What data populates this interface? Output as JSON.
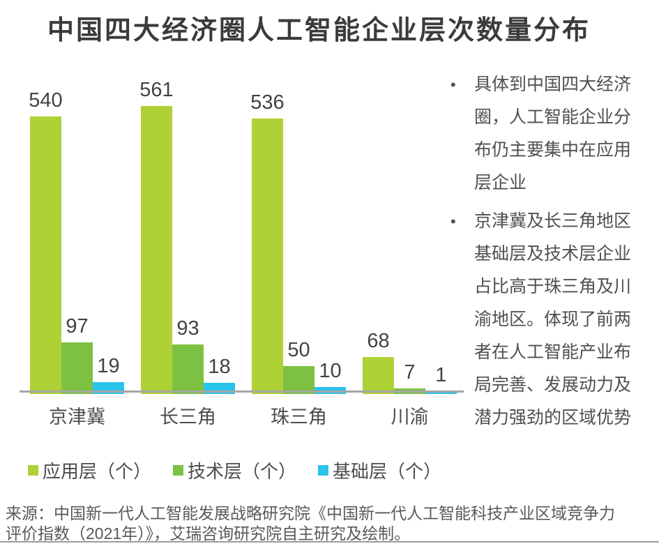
{
  "title": "中国四大经济圈人工智能企业层次数量分布",
  "chart_data": {
    "type": "bar",
    "title": "中国四大经济圈人工智能企业层次数量分布",
    "categories": [
      "京津冀",
      "长三角",
      "珠三角",
      "川渝"
    ],
    "series": [
      {
        "name": "应用层（个）",
        "color": "#aed135",
        "values": [
          540,
          561,
          536,
          68
        ]
      },
      {
        "name": "技术层（个）",
        "color": "#7dc142",
        "values": [
          97,
          93,
          50,
          7
        ]
      },
      {
        "name": "基础层（个）",
        "color": "#29c3ec",
        "values": [
          19,
          18,
          10,
          1
        ]
      }
    ],
    "xlabel": "",
    "ylabel": "",
    "ylim": [
      0,
      561
    ],
    "grid": false,
    "value_labels": true,
    "legend_position": "bottom"
  },
  "notes": {
    "bullet_glyph": "•",
    "items": [
      "具体到中国四大经济圈，人工智能企业分布仍主要集中在应用层企业",
      "京津冀及长三角地区基础层及技术层企业占比高于珠三角及川渝地区。体现了前两者在人工智能产业布局完善、发展动力及潜力强劲的区域优势"
    ]
  },
  "source": "来源：中国新一代人工智能发展战略研究院《中国新一代人工智能科技产业区域竞争力评价指数（2021年）》，艾瑞咨询研究院自主研究及绘制。",
  "colors": {
    "axis_line": "#a6a6a6",
    "title_text": "#3b3b3b",
    "value_label_text": "#404347",
    "category_label_text": "#4c4c4c",
    "note_text": "#4f4f54",
    "source_text": "#595959",
    "bottom_rule": "#9b9b9b"
  }
}
